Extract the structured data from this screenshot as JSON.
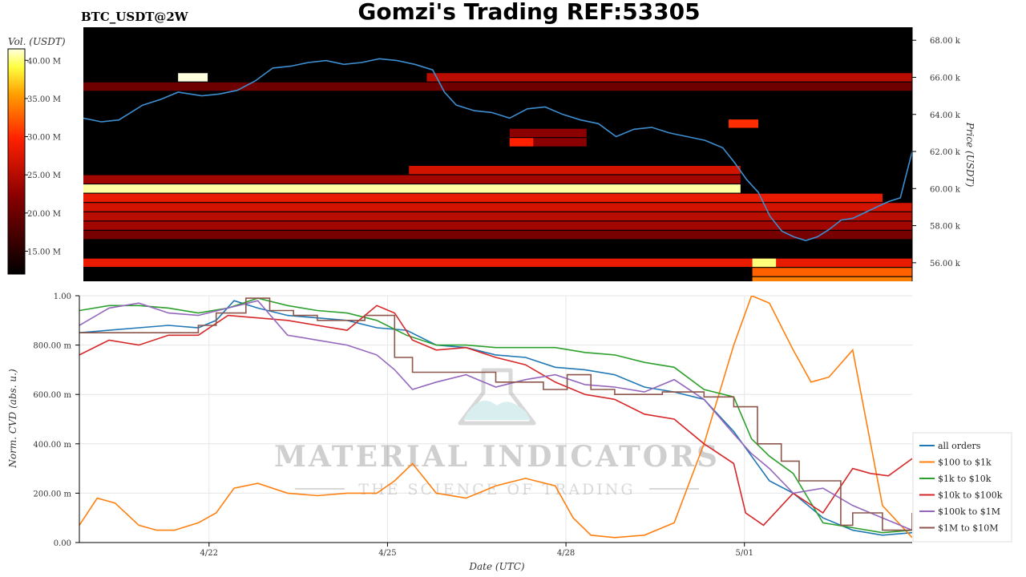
{
  "header": {
    "symbol": "BTC_USDT@2W",
    "title": "Gomzi's Trading REF:53305"
  },
  "watermark": {
    "main": "MATERIAL INDICATORS",
    "sub": "THE SCIENCE OF TRADING"
  },
  "colors": {
    "all_orders": "#1f77b4",
    "100_1k": "#ff7f0e",
    "1k_10k": "#2ca02c",
    "10k_100k": "#d62728",
    "100k_1m": "#9467bd",
    "1m_10m": "#8c564b",
    "heatmap_bg": "#000000"
  },
  "chart_data": [
    {
      "type": "heatmap",
      "colorbar": {
        "label": "Vol. (USDT)",
        "ticks": [
          "40.00 M",
          "35.00 M",
          "30.00 M",
          "25.00 M",
          "20.00 M",
          "15.00 M"
        ],
        "tick_values": [
          40,
          35,
          30,
          25,
          20,
          15
        ],
        "range": [
          12,
          41.5
        ],
        "unit_suffix": "M"
      },
      "ylabel": "Price (USDT)",
      "yticks": [
        "68.00 k",
        "66.00 k",
        "64.00 k",
        "62.00 k",
        "60.00 k",
        "58.00 k",
        "56.00 k"
      ],
      "ytick_values": [
        68,
        66,
        64,
        62,
        60,
        58,
        56
      ],
      "ylim": [
        55.0,
        68.7
      ],
      "xlim": [
        0,
        14
      ],
      "bands": [
        {
          "price": 60.0,
          "start": 0.0,
          "end": 11.1,
          "intensity": 0.97
        },
        {
          "price": 59.5,
          "start": 0.0,
          "end": 13.5,
          "intensity": 0.55
        },
        {
          "price": 59.0,
          "start": 0.0,
          "end": 14.0,
          "intensity": 0.5
        },
        {
          "price": 58.5,
          "start": 0.0,
          "end": 14.0,
          "intensity": 0.45
        },
        {
          "price": 58.0,
          "start": 0.0,
          "end": 14.0,
          "intensity": 0.4
        },
        {
          "price": 57.5,
          "start": 0.0,
          "end": 14.0,
          "intensity": 0.3
        },
        {
          "price": 61.0,
          "start": 5.5,
          "end": 11.1,
          "intensity": 0.5
        },
        {
          "price": 60.5,
          "start": 0.0,
          "end": 11.1,
          "intensity": 0.4
        },
        {
          "price": 66.0,
          "start": 5.8,
          "end": 14.0,
          "intensity": 0.45
        },
        {
          "price": 56.0,
          "start": 0.0,
          "end": 14.0,
          "intensity": 0.55
        },
        {
          "price": 55.5,
          "start": 11.3,
          "end": 14.0,
          "intensity": 0.7
        },
        {
          "price": 55.0,
          "start": 11.3,
          "end": 14.0,
          "intensity": 0.75
        },
        {
          "price": 65.5,
          "start": 0.0,
          "end": 14.0,
          "intensity": 0.28
        },
        {
          "price": 63.0,
          "start": 7.2,
          "end": 8.5,
          "intensity": 0.35
        },
        {
          "price": 62.5,
          "start": 7.2,
          "end": 8.5,
          "intensity": 0.35
        }
      ],
      "price_series": {
        "name": "",
        "points": [
          [
            0.0,
            63.8
          ],
          [
            0.3,
            63.6
          ],
          [
            0.6,
            63.7
          ],
          [
            1.0,
            64.5
          ],
          [
            1.3,
            64.8
          ],
          [
            1.6,
            65.2
          ],
          [
            2.0,
            65.0
          ],
          [
            2.3,
            65.1
          ],
          [
            2.6,
            65.3
          ],
          [
            2.9,
            65.8
          ],
          [
            3.2,
            66.5
          ],
          [
            3.5,
            66.6
          ],
          [
            3.8,
            66.8
          ],
          [
            4.1,
            66.9
          ],
          [
            4.4,
            66.7
          ],
          [
            4.7,
            66.8
          ],
          [
            5.0,
            67.0
          ],
          [
            5.3,
            66.9
          ],
          [
            5.6,
            66.7
          ],
          [
            5.9,
            66.4
          ],
          [
            6.1,
            65.2
          ],
          [
            6.3,
            64.5
          ],
          [
            6.6,
            64.2
          ],
          [
            6.9,
            64.1
          ],
          [
            7.2,
            63.8
          ],
          [
            7.5,
            64.3
          ],
          [
            7.8,
            64.4
          ],
          [
            8.1,
            64.0
          ],
          [
            8.4,
            63.7
          ],
          [
            8.7,
            63.5
          ],
          [
            9.0,
            62.8
          ],
          [
            9.3,
            63.2
          ],
          [
            9.6,
            63.3
          ],
          [
            9.9,
            63.0
          ],
          [
            10.2,
            62.8
          ],
          [
            10.5,
            62.6
          ],
          [
            10.8,
            62.2
          ],
          [
            11.0,
            61.4
          ],
          [
            11.2,
            60.5
          ],
          [
            11.4,
            59.8
          ],
          [
            11.6,
            58.5
          ],
          [
            11.8,
            57.7
          ],
          [
            12.0,
            57.4
          ],
          [
            12.2,
            57.2
          ],
          [
            12.4,
            57.4
          ],
          [
            12.6,
            57.8
          ],
          [
            12.8,
            58.3
          ],
          [
            13.0,
            58.4
          ],
          [
            13.2,
            58.7
          ],
          [
            13.4,
            59.0
          ],
          [
            13.6,
            59.3
          ],
          [
            13.8,
            59.5
          ],
          [
            14.0,
            62.0
          ]
        ]
      },
      "highlights": [
        {
          "price": 66.0,
          "start": 1.6,
          "end": 2.1,
          "intensity": 1.0
        },
        {
          "price": 63.5,
          "start": 10.9,
          "end": 11.4,
          "intensity": 0.62
        },
        {
          "price": 62.5,
          "start": 7.2,
          "end": 7.6,
          "intensity": 0.6
        },
        {
          "price": 56.0,
          "start": 11.3,
          "end": 11.7,
          "intensity": 0.95
        }
      ]
    },
    {
      "type": "line",
      "xlabel": "Date (UTC)",
      "ylabel": "Norm. CVD (abs. u.)",
      "xlim": [
        0,
        14
      ],
      "ylim": [
        0,
        1.0
      ],
      "xticks": [
        "4/22",
        "4/25",
        "4/28",
        "5/01"
      ],
      "xtick_values": [
        2.18,
        5.18,
        8.18,
        11.18
      ],
      "yticks": [
        "0.00",
        "200.00 m",
        "400.00 m",
        "600.00 m",
        "800.00 m",
        "1.00"
      ],
      "ytick_values": [
        0,
        0.2,
        0.4,
        0.6,
        0.8,
        1.0
      ],
      "grid": true,
      "legend_position": "right",
      "series": [
        {
          "name": "all orders",
          "color_key": "all_orders",
          "x": [
            0,
            0.5,
            1,
            1.5,
            2,
            2.3,
            2.6,
            3,
            3.5,
            4,
            4.5,
            5,
            5.5,
            6,
            6.5,
            7,
            7.5,
            8,
            8.5,
            9,
            9.5,
            10,
            10.5,
            11,
            11.3,
            11.6,
            12,
            12.5,
            13,
            13.5,
            14
          ],
          "y": [
            0.85,
            0.86,
            0.87,
            0.88,
            0.87,
            0.9,
            0.98,
            0.95,
            0.92,
            0.91,
            0.9,
            0.87,
            0.86,
            0.8,
            0.79,
            0.76,
            0.75,
            0.71,
            0.7,
            0.68,
            0.63,
            0.61,
            0.58,
            0.45,
            0.35,
            0.25,
            0.2,
            0.1,
            0.05,
            0.03,
            0.04
          ]
        },
        {
          "name": "$100 to $1k",
          "color_key": "100_1k",
          "x": [
            0,
            0.3,
            0.6,
            1,
            1.3,
            1.6,
            2,
            2.3,
            2.6,
            3,
            3.5,
            4,
            4.5,
            5,
            5.3,
            5.6,
            6,
            6.5,
            7,
            7.5,
            8,
            8.3,
            8.6,
            9,
            9.5,
            10,
            10.5,
            11,
            11.3,
            11.6,
            12,
            12.3,
            12.6,
            13,
            13.5,
            14
          ],
          "y": [
            0.07,
            0.18,
            0.16,
            0.07,
            0.05,
            0.05,
            0.08,
            0.12,
            0.22,
            0.24,
            0.2,
            0.19,
            0.2,
            0.2,
            0.25,
            0.32,
            0.2,
            0.18,
            0.23,
            0.26,
            0.23,
            0.1,
            0.03,
            0.02,
            0.03,
            0.08,
            0.4,
            0.8,
            1.0,
            0.97,
            0.78,
            0.65,
            0.67,
            0.78,
            0.15,
            0.02
          ]
        },
        {
          "name": "$1k to $10k",
          "color_key": "1k_10k",
          "x": [
            0,
            0.5,
            1,
            1.5,
            2,
            2.5,
            3,
            3.5,
            4,
            4.5,
            5,
            5.5,
            6,
            6.5,
            7,
            7.5,
            8,
            8.5,
            9,
            9.5,
            10,
            10.5,
            11,
            11.3,
            11.6,
            12,
            12.5,
            13,
            13.5,
            14
          ],
          "y": [
            0.94,
            0.96,
            0.96,
            0.95,
            0.93,
            0.95,
            0.99,
            0.96,
            0.94,
            0.93,
            0.9,
            0.84,
            0.8,
            0.8,
            0.79,
            0.79,
            0.79,
            0.77,
            0.76,
            0.73,
            0.71,
            0.62,
            0.59,
            0.42,
            0.35,
            0.28,
            0.08,
            0.06,
            0.04,
            0.05
          ]
        },
        {
          "name": "$10k to $100k",
          "color_key": "10k_100k",
          "x": [
            0,
            0.5,
            1,
            1.5,
            2,
            2.5,
            3,
            3.5,
            4,
            4.5,
            5,
            5.3,
            5.6,
            6,
            6.5,
            7,
            7.5,
            8,
            8.5,
            9,
            9.5,
            10,
            10.5,
            11,
            11.2,
            11.5,
            12,
            12.5,
            13,
            13.3,
            13.6,
            14
          ],
          "y": [
            0.76,
            0.82,
            0.8,
            0.84,
            0.84,
            0.92,
            0.91,
            0.9,
            0.88,
            0.86,
            0.96,
            0.93,
            0.82,
            0.78,
            0.79,
            0.75,
            0.72,
            0.65,
            0.6,
            0.58,
            0.52,
            0.5,
            0.4,
            0.32,
            0.12,
            0.07,
            0.2,
            0.12,
            0.3,
            0.28,
            0.27,
            0.34
          ]
        },
        {
          "name": "$100k to $1M",
          "color_key": "100k_1m",
          "x": [
            0,
            0.5,
            1,
            1.5,
            2,
            2.5,
            3,
            3.5,
            4,
            4.5,
            5,
            5.3,
            5.6,
            6,
            6.5,
            7,
            7.5,
            8,
            8.5,
            9,
            9.5,
            10,
            10.5,
            11,
            11.3,
            11.6,
            12,
            12.5,
            13,
            13.5,
            14
          ],
          "y": [
            0.88,
            0.95,
            0.97,
            0.93,
            0.92,
            0.95,
            0.98,
            0.84,
            0.82,
            0.8,
            0.76,
            0.7,
            0.62,
            0.65,
            0.68,
            0.63,
            0.66,
            0.68,
            0.64,
            0.63,
            0.61,
            0.66,
            0.58,
            0.44,
            0.36,
            0.3,
            0.2,
            0.22,
            0.15,
            0.1,
            0.05
          ]
        },
        {
          "name": "$1M to $10M",
          "color_key": "1m_10m",
          "step": true,
          "x": [
            0,
            2,
            2.3,
            2.8,
            3.2,
            3.6,
            4.0,
            4.8,
            5.3,
            5.6,
            6.2,
            7.0,
            7.8,
            8.2,
            8.6,
            9.0,
            9.8,
            10.5,
            11.0,
            11.4,
            11.8,
            12.1,
            12.8,
            13.0,
            13.5,
            14
          ],
          "y": [
            0.85,
            0.88,
            0.93,
            0.99,
            0.94,
            0.92,
            0.9,
            0.92,
            0.75,
            0.69,
            0.69,
            0.65,
            0.62,
            0.68,
            0.62,
            0.6,
            0.61,
            0.59,
            0.55,
            0.4,
            0.33,
            0.25,
            0.07,
            0.12,
            0.05,
            0.12
          ]
        }
      ]
    }
  ]
}
